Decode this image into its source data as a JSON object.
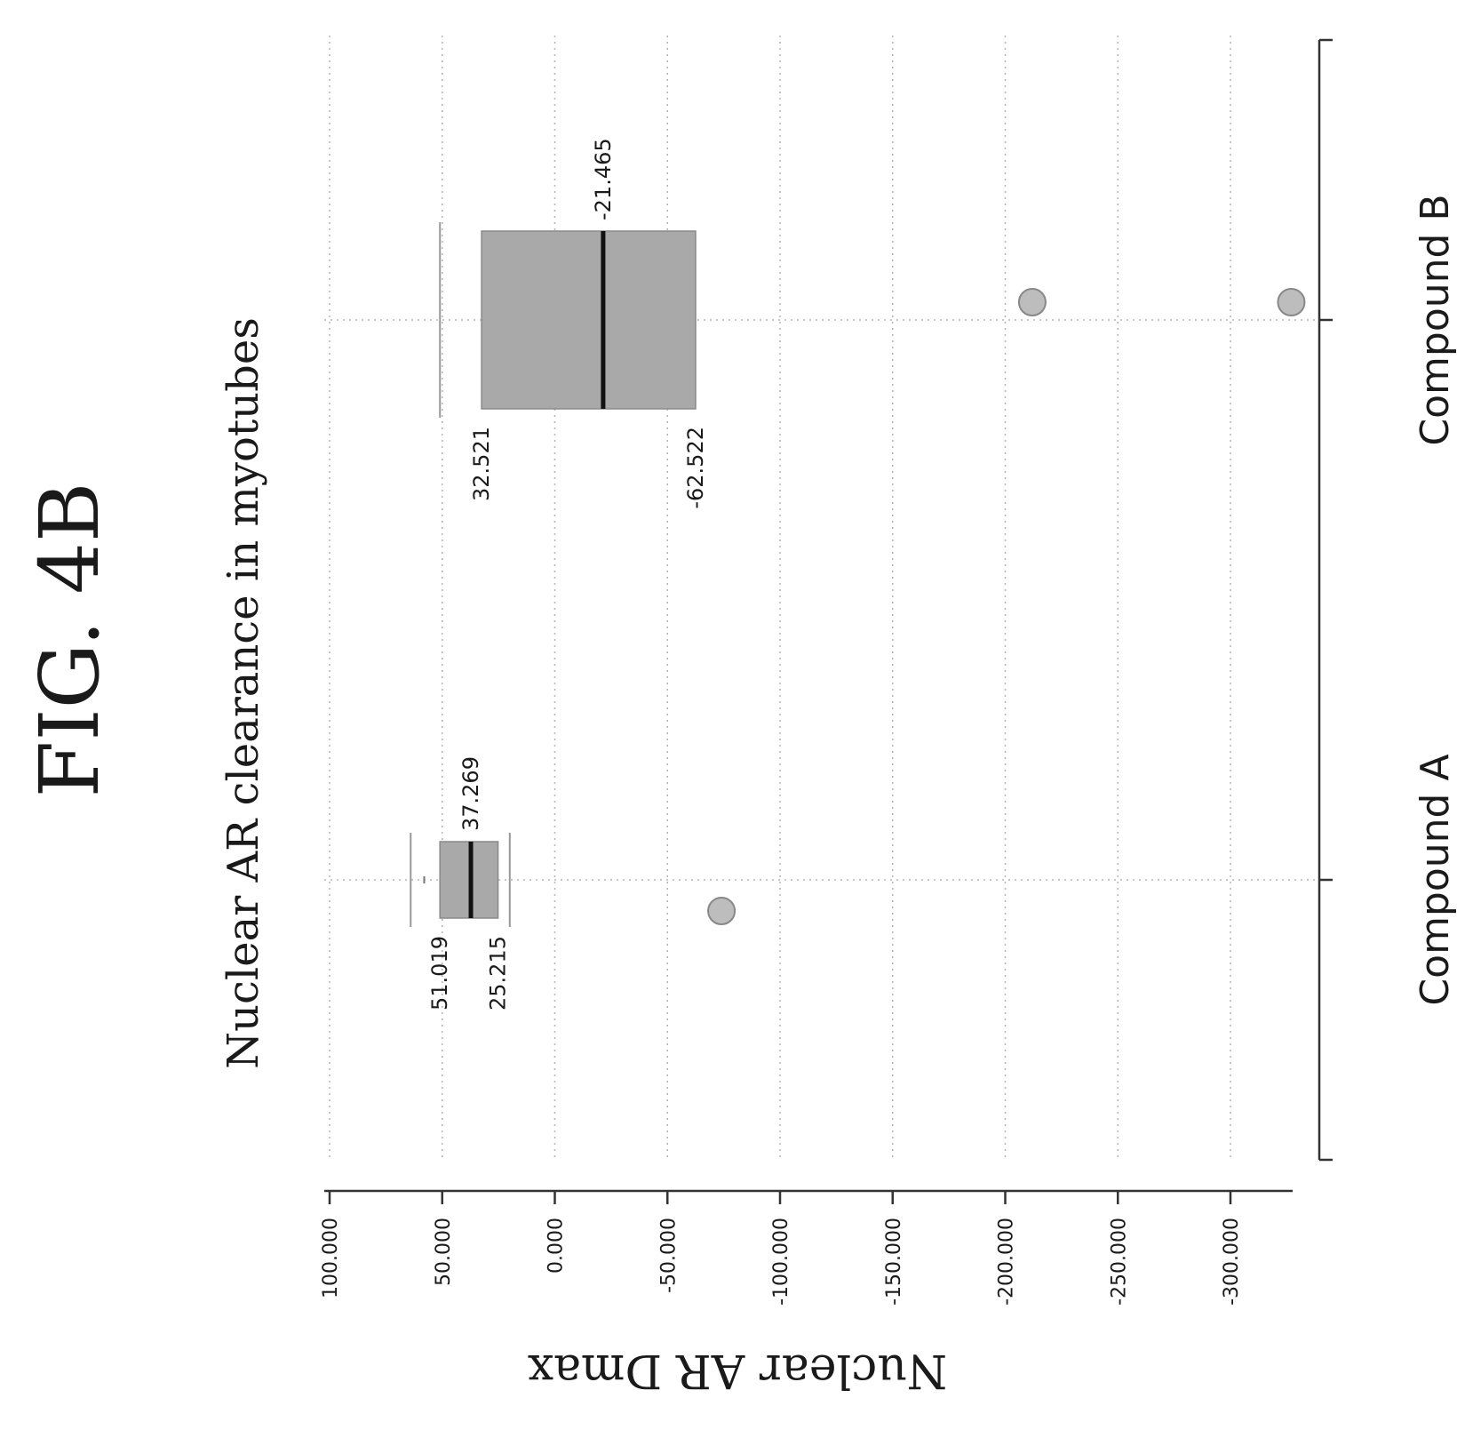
{
  "figure": {
    "label": "FIG. 4B"
  },
  "chart_data": {
    "type": "box",
    "orientation": "rotated-90-ccw",
    "title": "Nuclear AR clearance in myotubes",
    "ylabel": "Nuclear AR Dmax",
    "xlabel": "",
    "ylim": [
      -320,
      100
    ],
    "y_ticks": [
      100,
      50,
      0,
      -50,
      -100,
      -150,
      -200,
      -250,
      -300
    ],
    "y_tick_labels": [
      "100.000",
      "50.000",
      "0.000",
      "-50.000",
      "-100.000",
      "-150.000",
      "-200.000",
      "-250.000",
      "-300.000"
    ],
    "grid": true,
    "legend": "none",
    "categories": [
      "Compound A",
      "Compound B"
    ],
    "boxes": [
      {
        "category": "Compound A",
        "q3": 51.019,
        "median": 37.269,
        "q1": 25.215,
        "whisker_high": 64,
        "whisker_low": 20,
        "mean": 58,
        "outliers": [
          -74
        ],
        "labels": {
          "q3": "51.019",
          "median": "37.269",
          "q1": "25.215"
        }
      },
      {
        "category": "Compound B",
        "q3": 32.521,
        "median": -21.465,
        "q1": -62.522,
        "whisker_high": 51,
        "whisker_low": -62.522,
        "outliers": [
          -212,
          -327
        ],
        "labels": {
          "q3": "32.521",
          "median": "-21.465",
          "q1": "-62.522"
        }
      }
    ],
    "colors": {
      "box_fill": "#a9a9a9",
      "median_line": "#111111",
      "outlier_fill": "#bdbdbd",
      "grid": "#b5b5b5"
    }
  }
}
